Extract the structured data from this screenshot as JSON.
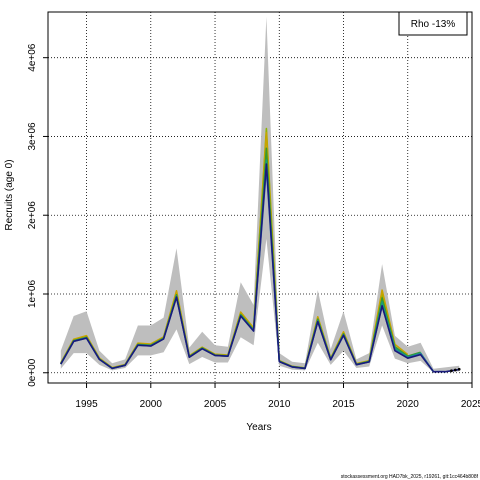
{
  "chart_data": {
    "type": "line",
    "xlabel": "Years",
    "ylabel": "Recruits (age 0)",
    "xlim": [
      1992,
      2025
    ],
    "ylim": [
      -130000,
      4580000
    ],
    "xticks": [
      1995,
      2000,
      2005,
      2010,
      2015,
      2020,
      2025
    ],
    "xtick_labels": [
      "1995",
      "2000",
      "2005",
      "2010",
      "2015",
      "2020",
      "2025"
    ],
    "yticks": [
      0,
      1000000,
      2000000,
      3000000,
      4000000
    ],
    "ytick_labels": [
      "0e+00",
      "1e+06",
      "2e+06",
      "3e+06",
      "4e+06"
    ],
    "grid": true,
    "legend": {
      "position": "top-right",
      "text": "Rho -13%"
    },
    "footer": "stockassessment.org HAD7bk_2025, r19261, git:1cc464b808f",
    "band_color": "#bebebe",
    "band": {
      "x": [
        1993,
        1994,
        1995,
        1996,
        1997,
        1998,
        1999,
        2000,
        2001,
        2002,
        2003,
        2004,
        2005,
        2006,
        2007,
        2008,
        2009,
        2010,
        2011,
        2012,
        2013,
        2014,
        2015,
        2016,
        2017,
        2018,
        2019,
        2020,
        2021,
        2022,
        2023,
        2024
      ],
      "lower": [
        50000,
        250000,
        250000,
        100000,
        30000,
        60000,
        220000,
        220000,
        260000,
        550000,
        110000,
        200000,
        130000,
        130000,
        450000,
        350000,
        1700000,
        90000,
        40000,
        30000,
        380000,
        100000,
        280000,
        60000,
        80000,
        600000,
        180000,
        120000,
        150000,
        5000,
        10000,
        20000
      ],
      "upper": [
        280000,
        720000,
        780000,
        280000,
        120000,
        170000,
        600000,
        600000,
        700000,
        1580000,
        320000,
        520000,
        350000,
        330000,
        1150000,
        860000,
        4520000,
        250000,
        140000,
        120000,
        1050000,
        300000,
        780000,
        170000,
        250000,
        1380000,
        470000,
        330000,
        380000,
        50000,
        70000,
        90000
      ]
    },
    "series": [
      {
        "color": "#8db600",
        "x": [
          1993,
          1994,
          1995,
          1996,
          1997,
          1998,
          1999,
          2000,
          2001,
          2002,
          2003,
          2004,
          2005,
          2006,
          2007,
          2008,
          2009,
          2010,
          2011,
          2012,
          2013,
          2014,
          2015,
          2016,
          2017,
          2018,
          2019
        ],
        "values": [
          120000,
          420000,
          460000,
          180000,
          60000,
          100000,
          370000,
          360000,
          450000,
          1020000,
          210000,
          320000,
          230000,
          220000,
          760000,
          560000,
          3100000,
          150000,
          80000,
          60000,
          700000,
          180000,
          510000,
          110000,
          150000,
          1000000,
          350000
        ]
      },
      {
        "color": "#c8a400",
        "x": [
          1993,
          1994,
          1995,
          1996,
          1997,
          1998,
          1999,
          2000,
          2001,
          2002,
          2003,
          2004,
          2005,
          2006,
          2007,
          2008,
          2009,
          2010,
          2011,
          2012,
          2013,
          2014,
          2015,
          2016,
          2017,
          2018,
          2019,
          2020
        ],
        "values": [
          125000,
          425000,
          470000,
          185000,
          65000,
          105000,
          375000,
          365000,
          455000,
          1040000,
          215000,
          325000,
          235000,
          225000,
          770000,
          570000,
          3050000,
          155000,
          82000,
          62000,
          710000,
          185000,
          520000,
          115000,
          155000,
          1050000,
          360000,
          230000
        ]
      },
      {
        "color": "#3a9a2a",
        "x": [
          1993,
          1994,
          1995,
          1996,
          1997,
          1998,
          1999,
          2000,
          2001,
          2002,
          2003,
          2004,
          2005,
          2006,
          2007,
          2008,
          2009,
          2010,
          2011,
          2012,
          2013,
          2014,
          2015,
          2016,
          2017,
          2018,
          2019,
          2020,
          2021
        ],
        "values": [
          115000,
          410000,
          450000,
          175000,
          58000,
          98000,
          360000,
          350000,
          440000,
          990000,
          205000,
          315000,
          225000,
          215000,
          740000,
          545000,
          2850000,
          148000,
          78000,
          58000,
          680000,
          175000,
          495000,
          108000,
          145000,
          950000,
          330000,
          210000,
          260000
        ]
      },
      {
        "color": "#1a9a7a",
        "x": [
          1993,
          1994,
          1995,
          1996,
          1997,
          1998,
          1999,
          2000,
          2001,
          2002,
          2003,
          2004,
          2005,
          2006,
          2007,
          2008,
          2009,
          2010,
          2011,
          2012,
          2013,
          2014,
          2015,
          2016,
          2017,
          2018,
          2019,
          2020,
          2021,
          2022
        ],
        "values": [
          112000,
          405000,
          445000,
          172000,
          56000,
          96000,
          355000,
          345000,
          435000,
          975000,
          200000,
          310000,
          222000,
          212000,
          730000,
          540000,
          2700000,
          145000,
          76000,
          56000,
          665000,
          170000,
          485000,
          105000,
          140000,
          900000,
          310000,
          200000,
          250000,
          10000
        ]
      },
      {
        "color": "#2a6fb0",
        "x": [
          1993,
          1994,
          1995,
          1996,
          1997,
          1998,
          1999,
          2000,
          2001,
          2002,
          2003,
          2004,
          2005,
          2006,
          2007,
          2008,
          2009,
          2010,
          2011,
          2012,
          2013,
          2014,
          2015,
          2016,
          2017,
          2018,
          2019,
          2020,
          2021,
          2022,
          2023
        ],
        "values": [
          110000,
          400000,
          440000,
          170000,
          55000,
          95000,
          350000,
          340000,
          430000,
          960000,
          198000,
          305000,
          220000,
          210000,
          720000,
          530000,
          2600000,
          142000,
          75000,
          55000,
          650000,
          165000,
          475000,
          102000,
          138000,
          850000,
          290000,
          190000,
          240000,
          15000,
          12000
        ]
      },
      {
        "color": "#1a1a7a",
        "x": [
          1993,
          1994,
          1995,
          1996,
          1997,
          1998,
          1999,
          2000,
          2001,
          2002,
          2003,
          2004,
          2005,
          2006,
          2007,
          2008,
          2009,
          2010,
          2011,
          2012,
          2013,
          2014,
          2015,
          2016,
          2017,
          2018,
          2019,
          2020,
          2021,
          2022,
          2023,
          2024
        ],
        "values": [
          110000,
          400000,
          440000,
          170000,
          55000,
          95000,
          350000,
          340000,
          430000,
          960000,
          198000,
          305000,
          220000,
          210000,
          720000,
          530000,
          2650000,
          142000,
          75000,
          55000,
          650000,
          165000,
          475000,
          102000,
          138000,
          850000,
          280000,
          185000,
          230000,
          12000,
          15000,
          40000
        ]
      }
    ],
    "retro_points": [
      {
        "x": 2023.4,
        "value": 25000
      },
      {
        "x": 2023.7,
        "value": 35000
      },
      {
        "x": 2024,
        "value": 45000
      }
    ]
  }
}
